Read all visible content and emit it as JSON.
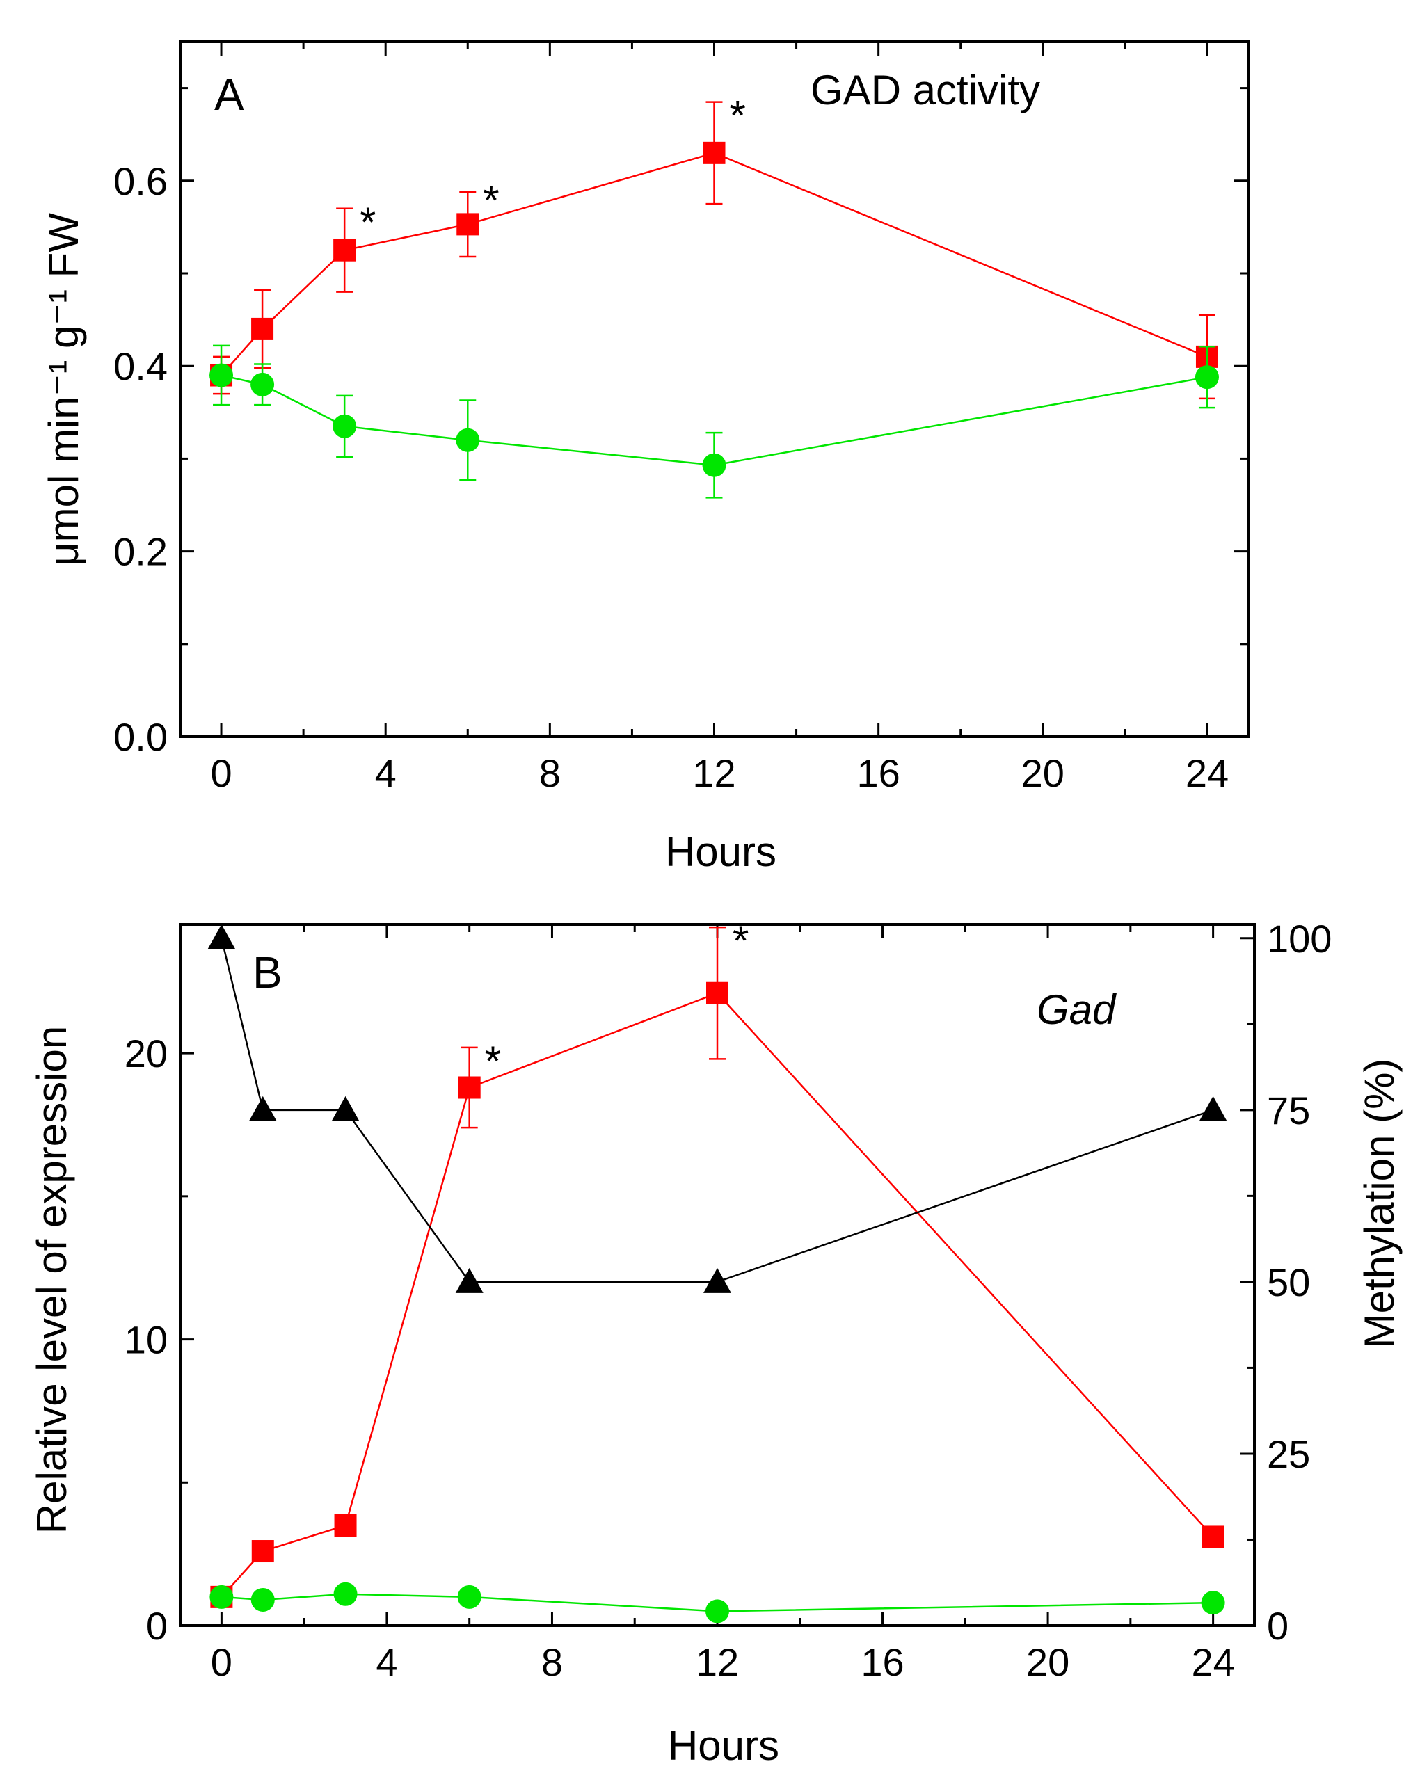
{
  "chart_data": [
    {
      "type": "line",
      "panel_label": "A",
      "annotation": "GAD activity",
      "xlabel": "Hours",
      "ylabel": "μmol min⁻¹ g⁻¹ FW",
      "xlim": [
        -1,
        25
      ],
      "ylim": [
        0,
        0.75
      ],
      "x_ticks": [
        0,
        4,
        8,
        12,
        16,
        20,
        24
      ],
      "x_tick_labels": [
        "0",
        "4",
        "8",
        "12",
        "16",
        "20",
        "24"
      ],
      "y_ticks": [
        0.0,
        0.2,
        0.4,
        0.6
      ],
      "y_tick_labels": [
        "0.0",
        "0.2",
        "0.4",
        "0.6"
      ],
      "grid": false,
      "series": [
        {
          "marker": "square",
          "color": "#ff0000",
          "x": [
            0,
            1,
            3,
            6,
            12,
            24
          ],
          "y": [
            0.39,
            0.44,
            0.525,
            0.553,
            0.63,
            0.41
          ],
          "err": [
            0.02,
            0.042,
            0.045,
            0.035,
            0.055,
            0.045
          ],
          "significant": [
            false,
            false,
            true,
            true,
            true,
            false
          ]
        },
        {
          "marker": "circle",
          "color": "#00e600",
          "x": [
            0,
            1,
            3,
            6,
            12,
            24
          ],
          "y": [
            0.39,
            0.38,
            0.335,
            0.32,
            0.293,
            0.388
          ],
          "err": [
            0.032,
            0.022,
            0.033,
            0.043,
            0.035,
            0.033
          ]
        }
      ]
    },
    {
      "type": "line",
      "panel_label": "B",
      "annotation": "Gad",
      "xlabel": "Hours",
      "ylabel": "Relative level of expression",
      "y2label": "Methylation (%)",
      "xlim": [
        -1,
        25
      ],
      "ylim": [
        0,
        24.5
      ],
      "y2lim": [
        0,
        102
      ],
      "x_ticks": [
        0,
        4,
        8,
        12,
        16,
        20,
        24
      ],
      "x_tick_labels": [
        "0",
        "4",
        "8",
        "12",
        "16",
        "20",
        "24"
      ],
      "y_ticks": [
        0,
        10,
        20
      ],
      "y_tick_labels": [
        "0",
        "10",
        "20"
      ],
      "y2_ticks": [
        0,
        25,
        50,
        75,
        100
      ],
      "y2_tick_labels": [
        "0",
        "25",
        "50",
        "75",
        "100"
      ],
      "grid": false,
      "series": [
        {
          "marker": "square",
          "color": "#ff0000",
          "axis": "left",
          "x": [
            0,
            1,
            3,
            6,
            12,
            24
          ],
          "y": [
            1.0,
            2.6,
            3.5,
            18.8,
            22.1,
            3.1
          ],
          "err": [
            0,
            0,
            0,
            1.4,
            2.3,
            0
          ],
          "significant": [
            false,
            false,
            false,
            true,
            true,
            false
          ]
        },
        {
          "marker": "circle",
          "color": "#00e600",
          "axis": "left",
          "x": [
            0,
            1,
            3,
            6,
            12,
            24
          ],
          "y": [
            1.0,
            0.9,
            1.1,
            1.0,
            0.5,
            0.8
          ],
          "err": [
            0,
            0,
            0,
            0,
            0,
            0
          ]
        },
        {
          "marker": "triangle",
          "color": "#000000",
          "axis": "right",
          "x": [
            0,
            1,
            3,
            6,
            12,
            24
          ],
          "y": [
            100,
            75,
            75,
            50,
            50,
            75
          ]
        }
      ]
    }
  ]
}
